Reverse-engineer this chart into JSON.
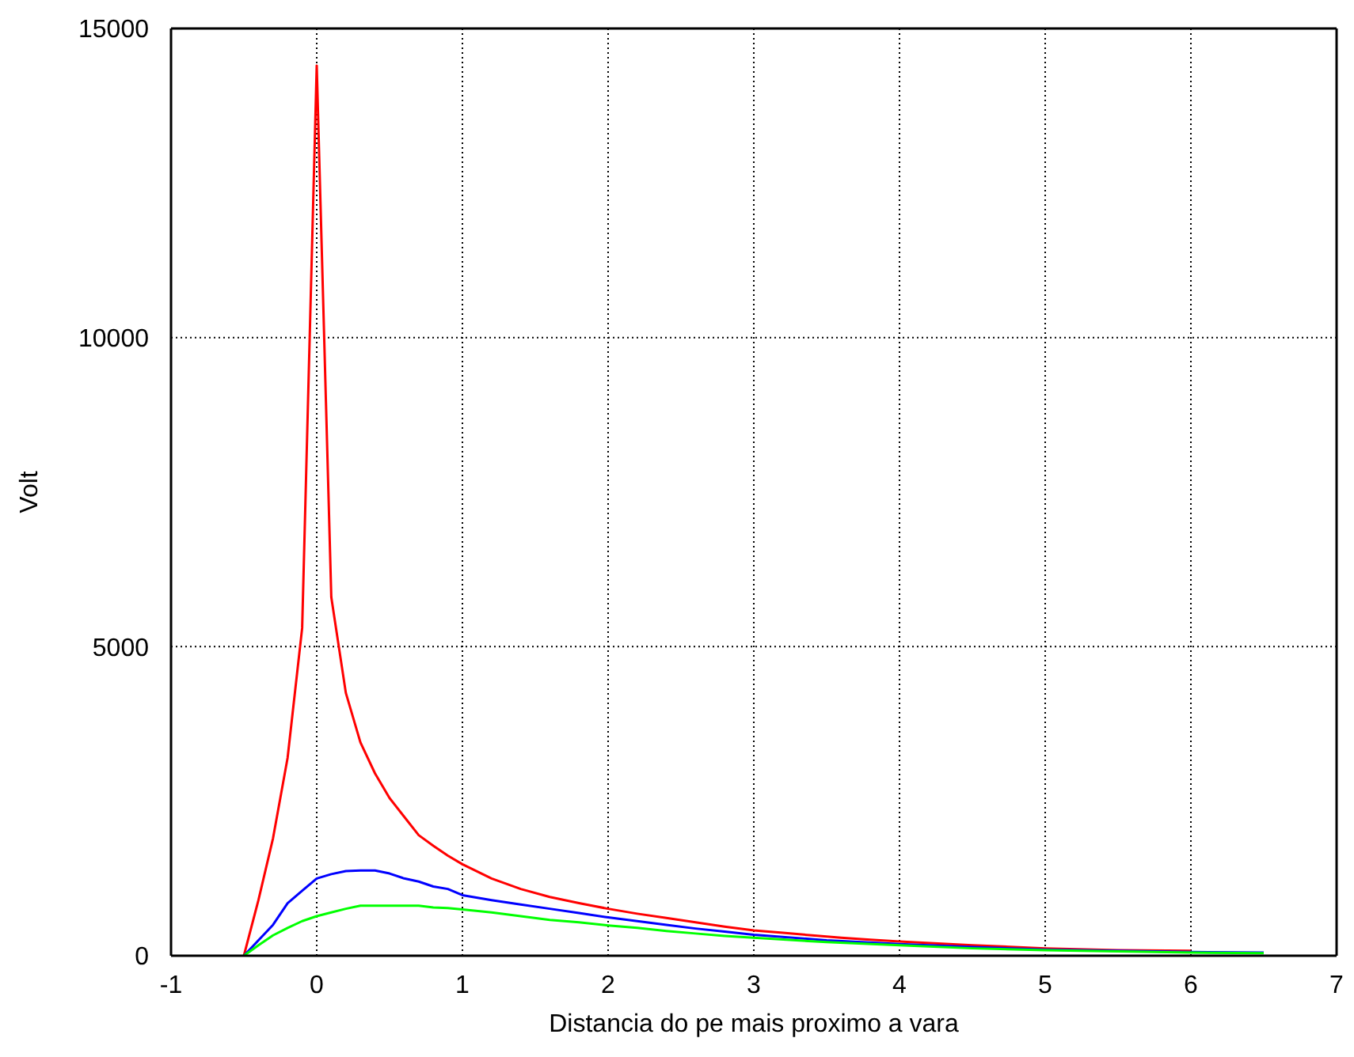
{
  "chart_data": {
    "type": "line",
    "xlabel": "Distancia do pe mais proximo a vara",
    "ylabel": "Volt",
    "xlim": [
      -1,
      7
    ],
    "xticks": [
      -1,
      0,
      1,
      2,
      3,
      4,
      5,
      6,
      7
    ],
    "ylim": [
      0,
      15000
    ],
    "yticks": [
      0,
      5000,
      10000,
      15000
    ],
    "grid": true,
    "line_style": "solid",
    "marker": "none",
    "series": [
      {
        "color": "#ff0000",
        "x": [
          -0.5,
          -0.4,
          -0.3,
          -0.2,
          -0.1,
          0,
          0.1,
          0.2,
          0.3,
          0.4,
          0.5,
          0.6,
          0.7,
          0.8,
          0.9,
          1.0,
          1.2,
          1.4,
          1.6,
          1.8,
          2.0,
          2.2,
          2.4,
          2.6,
          2.8,
          3.0,
          3.2,
          3.4,
          3.6,
          3.8,
          4.0,
          4.5,
          5.0,
          5.5,
          6.0
        ],
        "values": [
          0,
          900,
          1900,
          3200,
          5300,
          14400,
          5800,
          4250,
          3450,
          2950,
          2550,
          2250,
          1950,
          1780,
          1620,
          1480,
          1250,
          1080,
          950,
          850,
          760,
          680,
          610,
          540,
          470,
          410,
          370,
          330,
          290,
          260,
          230,
          170,
          120,
          90,
          80
        ]
      },
      {
        "color": "#0000ff",
        "x": [
          -0.5,
          -0.3,
          -0.2,
          -0.1,
          0,
          0.1,
          0.2,
          0.3,
          0.4,
          0.5,
          0.6,
          0.7,
          0.8,
          0.9,
          1.0,
          1.2,
          1.4,
          1.6,
          1.8,
          2.0,
          2.2,
          2.4,
          2.6,
          2.8,
          3.0,
          3.5,
          4.0,
          4.5,
          5.0,
          5.5,
          6.0,
          6.5
        ],
        "values": [
          0,
          500,
          850,
          1050,
          1250,
          1320,
          1370,
          1380,
          1380,
          1330,
          1250,
          1200,
          1120,
          1080,
          980,
          900,
          830,
          760,
          690,
          620,
          560,
          500,
          440,
          390,
          340,
          250,
          190,
          140,
          100,
          80,
          60,
          50
        ]
      },
      {
        "color": "#00ff00",
        "x": [
          -0.5,
          -0.4,
          -0.3,
          -0.2,
          -0.1,
          0,
          0.1,
          0.2,
          0.3,
          0.4,
          0.5,
          0.6,
          0.7,
          0.8,
          0.9,
          1.0,
          1.2,
          1.4,
          1.6,
          1.8,
          2.0,
          2.2,
          2.4,
          2.6,
          2.8,
          3.0,
          3.5,
          4.0,
          4.5,
          5.0,
          5.5,
          6.0,
          6.5
        ],
        "values": [
          0,
          170,
          330,
          450,
          560,
          640,
          700,
          760,
          810,
          810,
          810,
          810,
          810,
          780,
          770,
          750,
          700,
          640,
          580,
          540,
          490,
          450,
          400,
          360,
          320,
          290,
          220,
          170,
          120,
          90,
          70,
          50,
          40
        ]
      }
    ]
  }
}
